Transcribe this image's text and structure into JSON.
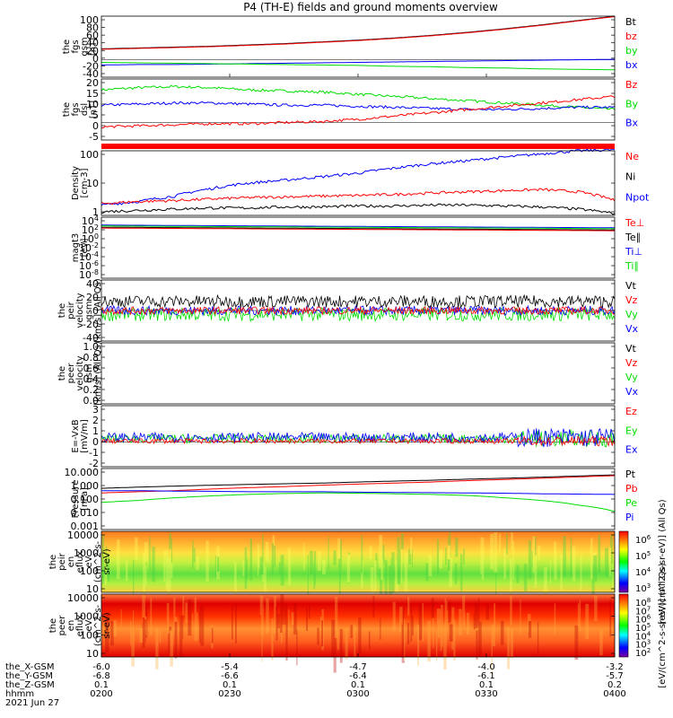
{
  "title": "P4 (TH-E) fields and ground moments overview",
  "colors": {
    "black": "#000000",
    "red": "#ff0000",
    "green": "#00dd00",
    "blue": "#0000ff"
  },
  "chart_data": [
    {
      "type": "line",
      "id": "fgs",
      "ylabel": [
        "the",
        "fgs",
        "gsm",
        "[nT]"
      ],
      "yticks": [
        "100",
        "80",
        "60",
        "40",
        "20",
        "0",
        "-20",
        "-40"
      ],
      "legend": [
        {
          "name": "Bt",
          "color": "black"
        },
        {
          "name": "bz",
          "color": "red"
        },
        {
          "name": "by",
          "color": "green"
        },
        {
          "name": "bx",
          "color": "blue"
        }
      ],
      "series": [
        {
          "name": "Bt",
          "color": "black",
          "values": [
            25,
            27,
            29,
            31,
            34,
            37,
            41,
            45,
            50,
            56,
            63,
            71,
            80,
            90,
            100
          ]
        },
        {
          "name": "bz",
          "color": "red",
          "values": [
            24,
            26,
            28,
            30,
            33,
            36,
            40,
            44,
            49,
            55,
            62,
            70,
            79,
            89,
            99
          ]
        },
        {
          "name": "bx",
          "color": "blue",
          "values": [
            -12,
            -11,
            -11,
            -10,
            -9,
            -8,
            -7,
            -6,
            -5,
            -4,
            -3,
            -2,
            -1,
            0,
            1
          ]
        },
        {
          "name": "by",
          "color": "green",
          "values": [
            -6,
            -7,
            -8,
            -9,
            -10,
            -11,
            -12,
            -13,
            -15,
            -16,
            -18,
            -19,
            -21,
            -22,
            -23
          ]
        }
      ]
    },
    {
      "type": "line",
      "id": "fgs_dsl",
      "ylabel": [
        "the",
        "fgs",
        "dsl",
        "[nT]"
      ],
      "yticks": [
        "20",
        "15",
        "10",
        "5",
        "0",
        "-5"
      ],
      "legend": [
        {
          "name": "Bz",
          "color": "red"
        },
        {
          "name": "By",
          "color": "green"
        },
        {
          "name": "Bx",
          "color": "blue"
        }
      ],
      "series": [
        {
          "name": "By",
          "color": "green",
          "values": [
            15,
            16,
            16.5,
            16,
            15,
            14.5,
            14,
            13,
            12,
            11,
            10,
            9,
            8,
            7,
            6
          ]
        },
        {
          "name": "Bx",
          "color": "blue",
          "values": [
            8,
            8.5,
            9,
            9,
            8.5,
            8,
            8,
            7.5,
            7,
            6.5,
            6,
            6,
            6.5,
            7,
            7
          ]
        },
        {
          "name": "Bz",
          "color": "red",
          "values": [
            -2,
            -1.5,
            -1,
            -0.5,
            -0.5,
            0,
            0.5,
            1.5,
            3,
            4.5,
            6,
            7.5,
            9,
            10.5,
            12
          ]
        }
      ]
    },
    {
      "type": "line",
      "id": "density",
      "ylabel": [
        "Density",
        "[cm-3]"
      ],
      "yticks": [
        "100",
        "10",
        "1"
      ],
      "legend": [
        {
          "name": "Ne",
          "color": "red"
        },
        {
          "name": "Ni",
          "color": "black"
        },
        {
          "name": "Npot",
          "color": "blue"
        }
      ],
      "series": [
        {
          "name": "Npot",
          "color": "blue",
          "values": [
            1.3,
            1.8,
            3,
            6,
            10,
            13,
            18,
            25,
            40,
            60,
            80,
            110,
            150,
            200,
            220
          ]
        },
        {
          "name": "Ne",
          "color": "red",
          "values": [
            1.5,
            1.8,
            2,
            2.3,
            2.6,
            2.8,
            3,
            3.2,
            3.5,
            4,
            4.5,
            5,
            5.5,
            4.5,
            2
          ]
        },
        {
          "name": "Ni",
          "color": "black",
          "values": [
            0.7,
            0.8,
            0.9,
            1,
            1,
            1.1,
            1.1,
            1.2,
            1.2,
            1.3,
            1.3,
            1.2,
            1.1,
            0.9,
            0.6
          ]
        }
      ]
    },
    {
      "type": "line",
      "id": "temperature",
      "ylabel": [
        "magt3",
        "[eV]"
      ],
      "yticks": [
        "10^4",
        "10^2",
        "10^0",
        "10^-2",
        "10^-4",
        "10^-6",
        "10^-8"
      ],
      "legend": [
        {
          "name": "Te⊥",
          "color": "red"
        },
        {
          "name": "Te∥",
          "color": "black"
        },
        {
          "name": "Ti⊥",
          "color": "blue"
        },
        {
          "name": "Ti∥",
          "color": "green"
        }
      ],
      "series": []
    },
    {
      "type": "line",
      "id": "peir_velocity",
      "ylabel": [
        "the",
        "peir",
        "velocity",
        "gsm",
        "[km/s] (All Qs)"
      ],
      "yticks": [
        "40",
        "20",
        "0",
        "-20",
        "-40"
      ],
      "legend": [
        {
          "name": "Vt",
          "color": "black"
        },
        {
          "name": "Vz",
          "color": "red"
        },
        {
          "name": "Vy",
          "color": "green"
        },
        {
          "name": "Vx",
          "color": "blue"
        }
      ],
      "series": []
    },
    {
      "type": "line",
      "id": "peer_velocity",
      "ylabel": [
        "the",
        "peer",
        "velocity",
        "gsm",
        "[km/s] (All Qs)"
      ],
      "yticks": [
        "1.0",
        "0.8",
        "0.6",
        "0.4",
        "0.2",
        "0.0"
      ],
      "legend": [
        {
          "name": "Vt",
          "color": "black"
        },
        {
          "name": "Vz",
          "color": "red"
        },
        {
          "name": "Vy",
          "color": "green"
        },
        {
          "name": "Vx",
          "color": "blue"
        }
      ],
      "series": []
    },
    {
      "type": "line",
      "id": "efield",
      "ylabel": [
        "E=-VxB",
        "[mV/m]"
      ],
      "yticks": [
        "3",
        "2",
        "1",
        "0",
        "-1",
        "-2"
      ],
      "legend": [
        {
          "name": "Ez",
          "color": "red"
        },
        {
          "name": "Ey",
          "color": "green"
        },
        {
          "name": "Ex",
          "color": "blue"
        }
      ],
      "series": []
    },
    {
      "type": "line",
      "id": "pressure",
      "ylabel": [
        "Pressure",
        "[nPa]"
      ],
      "yticks": [
        "10.000",
        "1.000",
        "0.100",
        "0.010",
        "0.001"
      ],
      "legend": [
        {
          "name": "Pt",
          "color": "black"
        },
        {
          "name": "Pb",
          "color": "red"
        },
        {
          "name": "Pe",
          "color": "green"
        },
        {
          "name": "Pi",
          "color": "blue"
        }
      ],
      "series": [
        {
          "name": "Pt",
          "color": "black",
          "values": [
            0.5,
            0.6,
            0.7,
            0.8,
            0.9,
            1,
            1.1,
            1.3,
            1.5,
            1.7,
            2,
            2.3,
            2.7,
            3.2,
            3.8
          ]
        },
        {
          "name": "Pb",
          "color": "red",
          "values": [
            0.25,
            0.3,
            0.35,
            0.45,
            0.55,
            0.65,
            0.8,
            0.95,
            1.1,
            1.3,
            1.6,
            1.9,
            2.3,
            2.8,
            3.4
          ]
        },
        {
          "name": "Pi",
          "color": "blue",
          "values": [
            0.35,
            0.35,
            0.33,
            0.32,
            0.3,
            0.3,
            0.3,
            0.28,
            0.27,
            0.26,
            0.25,
            0.24,
            0.22,
            0.21,
            0.2
          ]
        },
        {
          "name": "Pe",
          "color": "green",
          "values": [
            0.06,
            0.08,
            0.12,
            0.16,
            0.2,
            0.23,
            0.25,
            0.24,
            0.22,
            0.2,
            0.17,
            0.12,
            0.08,
            0.04,
            0.015
          ]
        }
      ]
    },
    {
      "type": "heatmap",
      "id": "peir_eflux",
      "ylabel": [
        "the",
        "peir",
        "en",
        "eflux",
        "eV",
        "(cm^2-s-",
        "sr-eV)"
      ],
      "yticks": [
        "10000",
        "1000",
        "100",
        "10"
      ],
      "colorbar": {
        "ticks": [
          "10^6",
          "10^5",
          "10^4",
          "10^3"
        ],
        "label": "[eV/(cm^2-s-sr-eV)] (All Qs)"
      }
    },
    {
      "type": "heatmap",
      "id": "peer_eflux",
      "ylabel": [
        "the",
        "peer",
        "en",
        "eflux",
        "eV",
        "(cm^2-s-",
        "sr-eV)"
      ],
      "yticks": [
        "10000",
        "1000",
        "100",
        "10"
      ],
      "colorbar": {
        "ticks": [
          "10^8",
          "10^7",
          "10^6",
          "10^5",
          "10^4",
          "10^3",
          "10^2"
        ],
        "label": "[eV/(cm^2-s-sr-eV)] (All Qs)"
      }
    }
  ],
  "xaxis": {
    "row_labels": [
      "the_X-GSM",
      "the_Y-GSM",
      "the_Z-GSM",
      "hhmm"
    ],
    "ticks": [
      {
        "x": "-6.0",
        "y": "-6.8",
        "z": "0.1",
        "t": "0200"
      },
      {
        "x": "-5.4",
        "y": "-6.6",
        "z": "0.1",
        "t": "0230"
      },
      {
        "x": "-4.7",
        "y": "-6.4",
        "z": "0.1",
        "t": "0300"
      },
      {
        "x": "-4.0",
        "y": "-6.1",
        "z": "0.1",
        "t": "0330"
      },
      {
        "x": "-3.2",
        "y": "-5.7",
        "z": "0.2",
        "t": "0400"
      }
    ],
    "date": "2021 Jun 27"
  }
}
